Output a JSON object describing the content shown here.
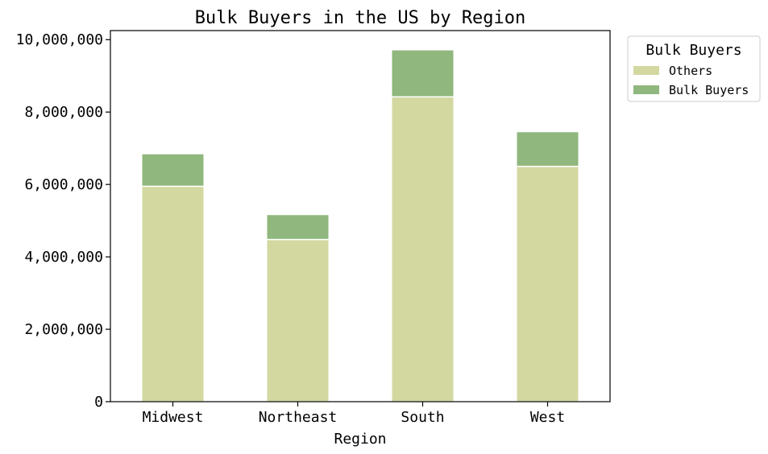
{
  "chart_data": {
    "type": "bar",
    "stacked": true,
    "title": "Bulk Buyers in the US by Region",
    "xlabel": "Region",
    "ylabel": "",
    "categories": [
      "Midwest",
      "Northeast",
      "South",
      "West"
    ],
    "series": [
      {
        "name": "Others",
        "values": [
          5950000,
          4480000,
          8420000,
          6500000
        ],
        "color": "#d3d8a0"
      },
      {
        "name": "Bulk Buyers",
        "values": [
          900000,
          690000,
          1300000,
          960000
        ],
        "color": "#90b77d"
      }
    ],
    "ylim": [
      0,
      10250000
    ],
    "yticks": [
      0,
      2000000,
      4000000,
      6000000,
      8000000,
      10000000
    ],
    "ytick_labels": [
      "0",
      "2,000,000",
      "4,000,000",
      "6,000,000",
      "8,000,000",
      "10,000,000"
    ],
    "grid": false,
    "legend": {
      "title": "Bulk Buyers",
      "position": "outside-top-right"
    }
  }
}
